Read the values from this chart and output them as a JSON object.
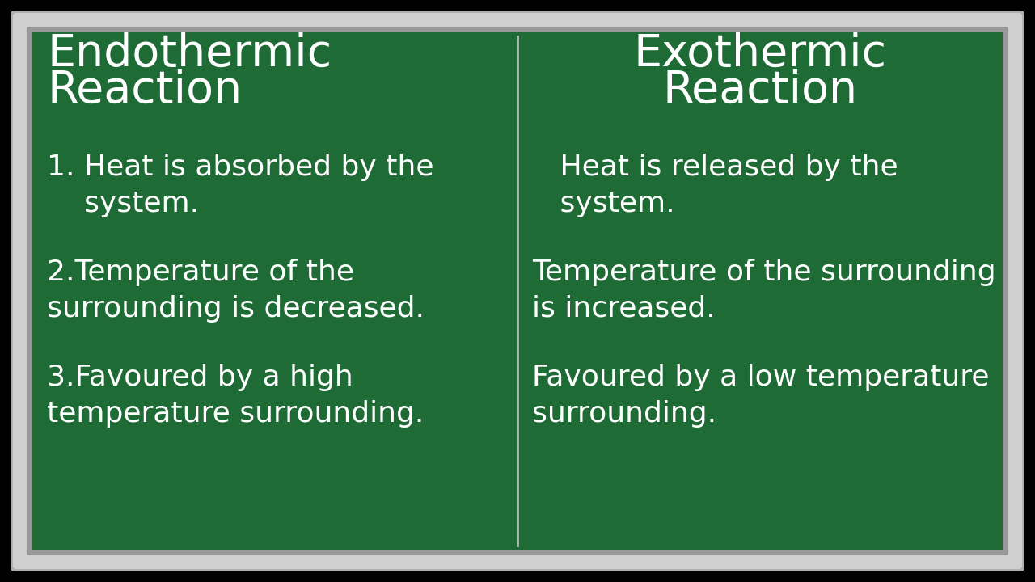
{
  "bg_outer": "#000000",
  "bg_board": "#1e6b35",
  "frame_outer": "#888888",
  "frame_inner": "#c0c0c0",
  "frame_highlight": "#d8d8d8",
  "divider_color": "#c8c8c8",
  "text_color": "#ffffff",
  "left_title_line1": "Endothermic",
  "left_title_line2": "Reaction",
  "right_title_line1": "Exothermic",
  "right_title_line2": "Reaction",
  "left_points": [
    "1. Heat is absorbed by the\n    system.",
    "2.Temperature of the\nsurrounding is decreased.",
    "3.Favoured by a high\ntemperature surrounding."
  ],
  "right_points": [
    "   Heat is released by the\n   system.",
    "Temperature of the surrounding\nis increased.",
    "Favoured by a low temperature\nsurrounding."
  ],
  "title_fontsize": 40,
  "body_fontsize": 26,
  "fig_width": 12.8,
  "fig_height": 7.2
}
